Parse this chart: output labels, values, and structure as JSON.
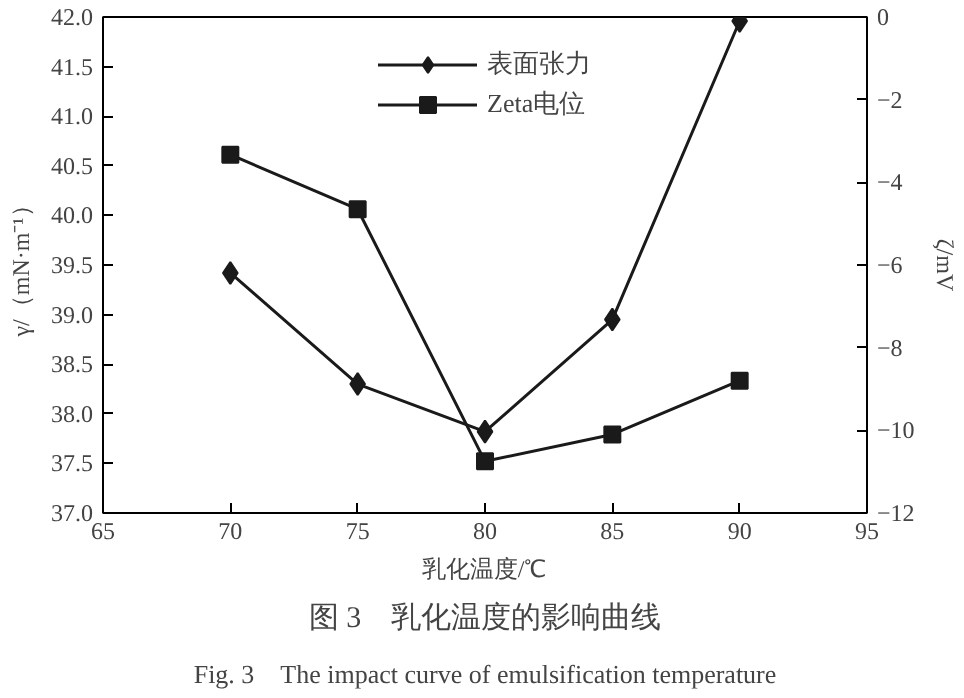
{
  "chart_data": {
    "type": "line",
    "title": "图 3　乳化温度的影响曲线",
    "annotations": [
      "Fig. 3　The impact curve of emulsification temperature"
    ],
    "xlabel": "乳化温度/℃",
    "ylabel": "γ/（mN·m⁻¹）",
    "y2label": "ζ/mV",
    "x": [
      70,
      75,
      80,
      85,
      90
    ],
    "series": [
      {
        "name": "表面张力",
        "color": "#1a1a1a",
        "marker": "diamond",
        "values": [
          39.42,
          38.3,
          37.82,
          38.95,
          41.96
        ]
      },
      {
        "name": "Zeta电位",
        "color": "#1a1a1a",
        "marker": "square",
        "axis": "y2",
        "values": [
          -3.33,
          -4.65,
          -10.75,
          -10.1,
          -8.8
        ]
      }
    ],
    "xlim": [
      65,
      95
    ],
    "xticks": [
      65,
      70,
      75,
      80,
      85,
      90,
      95
    ],
    "ylim": [
      37.0,
      42.0
    ],
    "yticks": [
      {
        "value": 37.0,
        "label": "37.0"
      },
      {
        "value": 37.5,
        "label": "37.5"
      },
      {
        "value": 38.0,
        "label": "38.0"
      },
      {
        "value": 38.5,
        "label": "38.5"
      },
      {
        "value": 39.0,
        "label": "39.0"
      },
      {
        "value": 39.5,
        "label": "39.5"
      },
      {
        "value": 40.0,
        "label": "40.0"
      },
      {
        "value": 40.5,
        "label": "40.5"
      },
      {
        "value": 41.0,
        "label": "41.0"
      },
      {
        "value": 41.5,
        "label": "41.5"
      },
      {
        "value": 42.0,
        "label": "42.0"
      }
    ],
    "y2lim": [
      -12,
      0
    ],
    "y2ticks": [
      {
        "value": -12,
        "label": "−12"
      },
      {
        "value": -10,
        "label": "−10"
      },
      {
        "value": -8,
        "label": "−8"
      },
      {
        "value": -6,
        "label": "−6"
      },
      {
        "value": -4,
        "label": "−4"
      },
      {
        "value": -2,
        "label": "−2"
      },
      0
    ],
    "legend": "top",
    "grid": false,
    "line_style": "solid"
  }
}
